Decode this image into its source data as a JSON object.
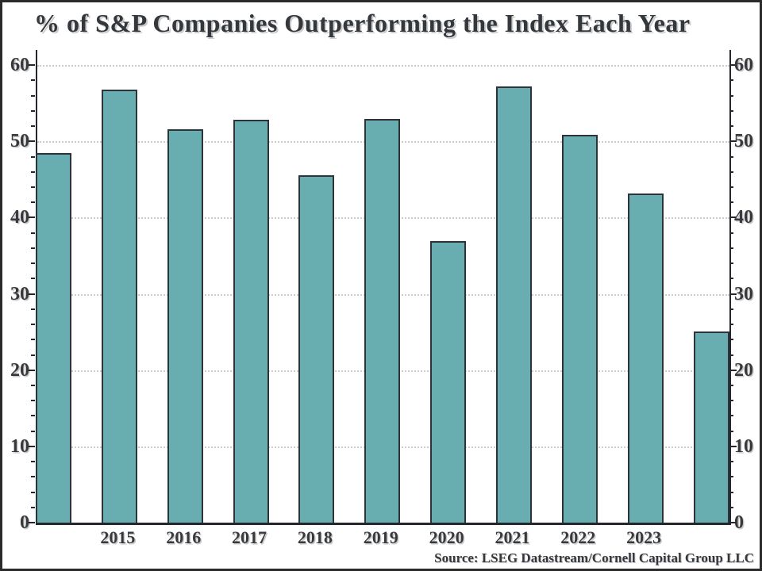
{
  "chart_data": {
    "type": "bar",
    "title": "% of S&P Companies Outperforming the Index Each Year",
    "source": "Source: LSEG Datastream/Cornell Capital Group LLC",
    "categories": [
      "",
      "2015",
      "2016",
      "2017",
      "2018",
      "2019",
      "2020",
      "2021",
      "2022",
      "2023",
      ""
    ],
    "values": [
      48.5,
      56.8,
      51.6,
      52.8,
      45.6,
      53.0,
      36.9,
      57.2,
      50.9,
      43.2,
      25.1
    ],
    "xlabel": "",
    "ylabel": "",
    "ylim": [
      0,
      62
    ],
    "yticks_major": [
      0,
      10,
      20,
      30,
      40,
      50,
      60
    ],
    "ytick_minor_step": 2,
    "grid": "horizontal dotted lines at major ticks",
    "legend": "none",
    "right_axis_mirror": true,
    "bar_color": "#68adb0",
    "bar_edge_color": "#2d3338",
    "axis_color": "#24282c",
    "grid_color": "#cccccc",
    "text_color": "#37393d"
  }
}
